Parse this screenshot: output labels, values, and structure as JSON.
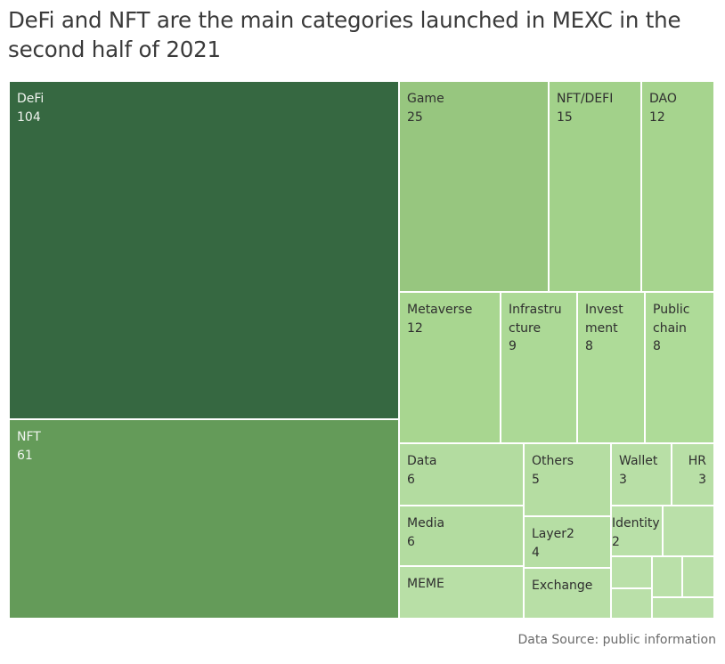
{
  "title": "DeFi and NFT are the main categories launched in MEXC in the second half of 2021",
  "source": "Data Source: public information",
  "chart_data": {
    "type": "treemap",
    "items": [
      {
        "name": "DeFi",
        "value": 104,
        "color": "#366841",
        "text": "#f0f4ef",
        "label": [
          "DeFi"
        ]
      },
      {
        "name": "NFT",
        "value": 61,
        "color": "#649b59",
        "text": "#f0f4ef",
        "label": [
          "NFT"
        ]
      },
      {
        "name": "Game",
        "value": 25,
        "color": "#97c67f",
        "text": "#2f2f2f",
        "label": [
          "Game"
        ]
      },
      {
        "name": "NFT/DEFI",
        "value": 15,
        "color": "#a2d18a",
        "text": "#2f2f2f",
        "label": [
          "NFT/DEFI"
        ]
      },
      {
        "name": "DAO",
        "value": 12,
        "color": "#a6d48e",
        "text": "#2f2f2f",
        "label": [
          "DAO"
        ]
      },
      {
        "name": "Metaverse",
        "value": 12,
        "color": "#a8d690",
        "text": "#2f2f2f",
        "label": [
          "Metaverse"
        ]
      },
      {
        "name": "Infrastructure",
        "value": 9,
        "color": "#acd996",
        "text": "#2f2f2f",
        "label": [
          "Infrastru",
          "cture"
        ]
      },
      {
        "name": "Investment",
        "value": 8,
        "color": "#aedb98",
        "text": "#2f2f2f",
        "label": [
          "Invest",
          "ment"
        ]
      },
      {
        "name": "Public chain",
        "value": 8,
        "color": "#aedb98",
        "text": "#2f2f2f",
        "label": [
          "Public",
          "chain"
        ]
      },
      {
        "name": "Data",
        "value": 6,
        "color": "#b3dca0",
        "text": "#2f2f2f",
        "label": [
          "Data"
        ]
      },
      {
        "name": "Others",
        "value": 5,
        "color": "#b5ddA2",
        "text": "#2f2f2f",
        "label": [
          "Others"
        ]
      },
      {
        "name": "Wallet",
        "value": 3,
        "color": "#b8dfa6",
        "text": "#2f2f2f",
        "label": [
          "Wallet"
        ]
      },
      {
        "name": "HR",
        "value": 3,
        "color": "#b8dfa6",
        "text": "#2f2f2f",
        "label": [
          "HR"
        ]
      },
      {
        "name": "Media",
        "value": 6,
        "color": "#b3dca0",
        "text": "#2f2f2f",
        "label": [
          "Media"
        ]
      },
      {
        "name": "Layer2",
        "value": 4,
        "color": "#b6dea4",
        "text": "#2f2f2f",
        "label": [
          "Layer2"
        ]
      },
      {
        "name": "Identity",
        "value": 2,
        "color": "#b9e0a8",
        "text": "#2f2f2f",
        "label": [
          "Identity"
        ]
      },
      {
        "name": "MEME",
        "value": null,
        "color": "#b8dfa6",
        "text": "#2f2f2f",
        "label": [
          "MEME"
        ]
      },
      {
        "name": "Exchange",
        "value": null,
        "color": "#b8dfa6",
        "text": "#2f2f2f",
        "label": [
          "Exchange"
        ]
      },
      {
        "name": "",
        "value": null,
        "color": "#bae0a9",
        "text": "#2f2f2f",
        "label": []
      },
      {
        "name": "",
        "value": null,
        "color": "#bae0a9",
        "text": "#2f2f2f",
        "label": []
      },
      {
        "name": "",
        "value": null,
        "color": "#bae0a9",
        "text": "#2f2f2f",
        "label": []
      },
      {
        "name": "",
        "value": null,
        "color": "#bae0a9",
        "text": "#2f2f2f",
        "label": []
      },
      {
        "name": "",
        "value": null,
        "color": "#bae0a9",
        "text": "#2f2f2f",
        "label": []
      },
      {
        "name": "",
        "value": null,
        "color": "#bae0a9",
        "text": "#2f2f2f",
        "label": []
      }
    ]
  }
}
